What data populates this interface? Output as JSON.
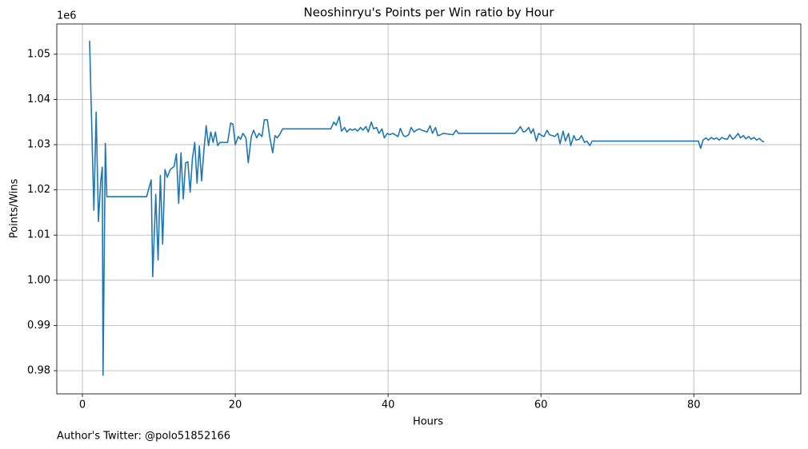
{
  "chart_data": {
    "type": "line",
    "title": "Neoshinryu's Points per Win ratio by Hour",
    "xlabel": "Hours",
    "ylabel": "Points/Wins",
    "y_offset_label": "1e6",
    "footer": "Author's Twitter: @polo51852166",
    "grid": true,
    "xlim": [
      -3.35,
      94.0
    ],
    "ylim": [
      0.97487,
      1.0567
    ],
    "xticks": [
      0,
      20,
      40,
      60,
      80
    ],
    "yticks": [
      0.98,
      0.99,
      {
        "value": 1.0,
        "label": "1.00"
      },
      1.01,
      1.02,
      1.03,
      1.04,
      1.05
    ],
    "x": [
      0.94,
      1.5,
      1.8,
      2.1,
      2.4,
      2.6,
      2.7,
      3.0,
      3.2,
      8.4,
      9.0,
      9.2,
      9.6,
      9.9,
      10.2,
      10.5,
      10.8,
      11.1,
      11.5,
      12.0,
      12.3,
      12.6,
      12.9,
      13.2,
      13.5,
      13.8,
      14.1,
      14.4,
      14.7,
      15.0,
      15.3,
      15.6,
      15.9,
      16.2,
      16.5,
      16.8,
      17.1,
      17.4,
      17.7,
      18.0,
      19.0,
      19.4,
      19.7,
      20.0,
      20.4,
      20.7,
      21.0,
      21.4,
      21.7,
      22.1,
      22.4,
      22.8,
      23.1,
      23.5,
      23.8,
      24.2,
      24.5,
      24.9,
      25.2,
      25.5,
      25.8,
      26.2,
      32.5,
      32.9,
      33.2,
      33.6,
      33.9,
      34.3,
      34.6,
      35.0,
      35.3,
      35.7,
      36.0,
      36.4,
      36.7,
      37.1,
      37.4,
      37.8,
      38.1,
      38.5,
      38.8,
      39.2,
      39.5,
      39.9,
      40.2,
      40.6,
      40.9,
      41.3,
      41.6,
      42.0,
      42.3,
      42.7,
      43.0,
      43.4,
      43.7,
      44.1,
      44.4,
      44.8,
      45.1,
      45.5,
      45.8,
      46.2,
      46.5,
      46.9,
      47.2,
      48.5,
      48.9,
      49.2,
      56.6,
      57.0,
      57.3,
      57.7,
      58.0,
      58.4,
      58.7,
      59.0,
      59.4,
      59.7,
      60.1,
      60.4,
      60.8,
      61.1,
      61.5,
      61.8,
      62.2,
      62.5,
      62.9,
      63.2,
      63.6,
      63.9,
      64.3,
      64.6,
      65.0,
      65.3,
      65.7,
      66.0,
      66.4,
      66.7,
      80.6,
      80.9,
      81.2,
      81.6,
      81.9,
      82.3,
      82.6,
      83.0,
      83.3,
      83.7,
      84.0,
      84.4,
      84.7,
      85.1,
      85.4,
      85.8,
      86.1,
      86.5,
      86.8,
      87.2,
      87.5,
      87.9,
      88.2,
      88.6,
      88.9,
      89.2
    ],
    "series": [
      {
        "name": "Points/Wins",
        "color": "#1f77b4",
        "values": [
          1.053,
          1.0155,
          1.0372,
          1.013,
          1.022,
          1.025,
          0.979,
          1.0303,
          1.0185,
          1.0185,
          1.0222,
          1.0008,
          1.019,
          1.0045,
          1.0232,
          1.008,
          1.0245,
          1.0228,
          1.0245,
          1.0252,
          1.028,
          1.017,
          1.0282,
          1.018,
          1.026,
          1.0262,
          1.0195,
          1.027,
          1.0305,
          1.0215,
          1.0297,
          1.022,
          1.0288,
          1.0342,
          1.0298,
          1.0328,
          1.0305,
          1.0328,
          1.0298,
          1.0305,
          1.0305,
          1.0348,
          1.0345,
          1.03,
          1.0318,
          1.0312,
          1.0325,
          1.0315,
          1.026,
          1.0318,
          1.0332,
          1.0315,
          1.0325,
          1.0318,
          1.0355,
          1.0355,
          1.0318,
          1.0282,
          1.032,
          1.0315,
          1.0322,
          1.0335,
          1.0335,
          1.035,
          1.0343,
          1.0362,
          1.033,
          1.0338,
          1.0328,
          1.0335,
          1.0332,
          1.0335,
          1.033,
          1.0338,
          1.0332,
          1.034,
          1.0328,
          1.035,
          1.0335,
          1.0338,
          1.0325,
          1.0335,
          1.0315,
          1.0325,
          1.0322,
          1.0325,
          1.0322,
          1.0318,
          1.0336,
          1.032,
          1.0318,
          1.0322,
          1.0338,
          1.0328,
          1.0332,
          1.0335,
          1.0332,
          1.033,
          1.0328,
          1.0342,
          1.0325,
          1.0338,
          1.032,
          1.0322,
          1.0325,
          1.0322,
          1.0332,
          1.0325,
          1.0325,
          1.0332,
          1.034,
          1.0328,
          1.033,
          1.0338,
          1.0325,
          1.0335,
          1.0308,
          1.0325,
          1.032,
          1.0318,
          1.0332,
          1.0322,
          1.032,
          1.0318,
          1.0325,
          1.0302,
          1.033,
          1.0308,
          1.0325,
          1.0298,
          1.032,
          1.031,
          1.0312,
          1.032,
          1.0305,
          1.0308,
          1.0298,
          1.0308,
          1.0308,
          1.0292,
          1.031,
          1.0315,
          1.031,
          1.0316,
          1.0312,
          1.0315,
          1.031,
          1.0316,
          1.0313,
          1.0312,
          1.0322,
          1.0312,
          1.0316,
          1.0325,
          1.0315,
          1.032,
          1.0313,
          1.0318,
          1.0312,
          1.0316,
          1.031,
          1.0314,
          1.0308,
          1.0306
        ]
      }
    ]
  }
}
